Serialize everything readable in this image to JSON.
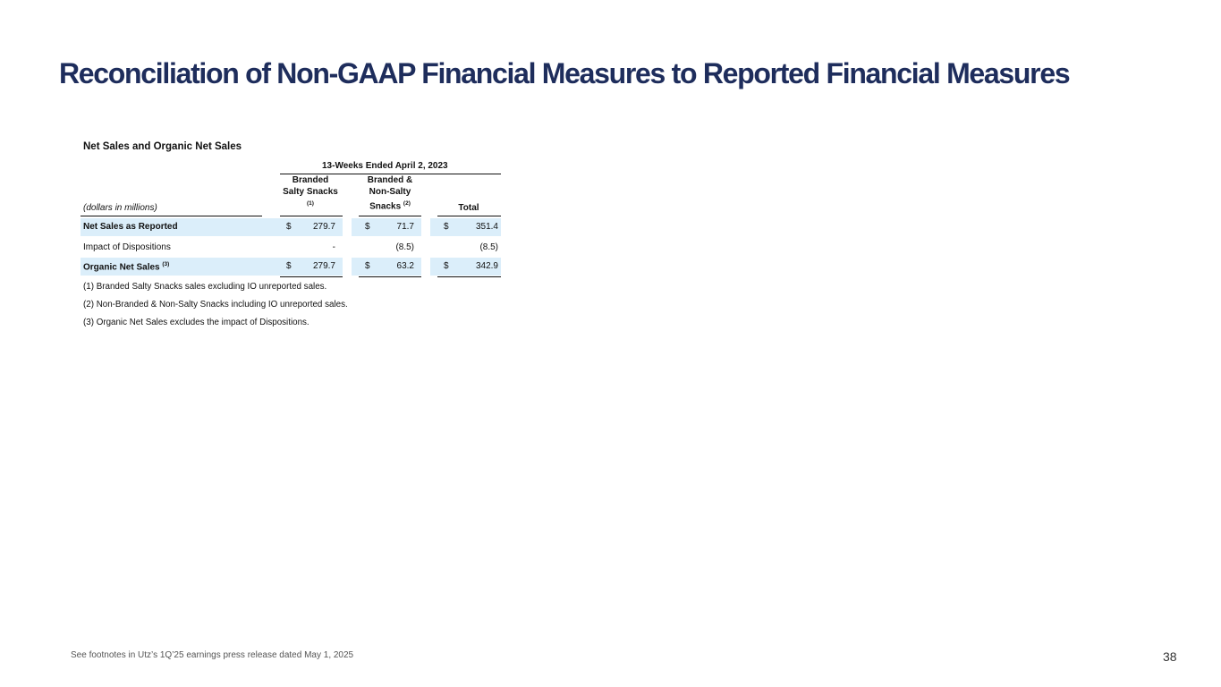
{
  "title": "Reconciliation of Non-GAAP Financial Measures to Reported Financial Measures",
  "table": {
    "section_title": "Net Sales and Organic Net Sales",
    "period_header": "13-Weeks Ended April 2, 2023",
    "units_label": "(dollars in millions)",
    "columns": [
      {
        "line1": "Branded",
        "line2": "Salty Snacks",
        "line3": "",
        "note": "(1)"
      },
      {
        "line1": "Branded &",
        "line2": "Non-Salty",
        "line3": "Snacks",
        "note": "(2)"
      },
      {
        "line1": "",
        "line2": "",
        "line3": "Total",
        "note": ""
      }
    ],
    "rows": [
      {
        "label": "Net Sales as Reported",
        "note": "",
        "cur": [
          "$",
          "$",
          "$"
        ],
        "values": [
          "279.7",
          "71.7",
          "351.4"
        ]
      },
      {
        "label": "Impact of Dispositions",
        "note": "",
        "cur": [
          "",
          "",
          ""
        ],
        "values": [
          "-",
          "(8.5)",
          "(8.5)"
        ]
      },
      {
        "label": "Organic Net Sales",
        "note": "(3)",
        "cur": [
          "$",
          "$",
          "$"
        ],
        "values": [
          "279.7",
          "63.2",
          "342.9"
        ]
      }
    ],
    "footnotes": [
      "(1) Branded Salty Snacks sales excluding IO unreported sales.",
      "(2) Non-Branded & Non-Salty Snacks including IO unreported sales.",
      "(3) Organic Net Sales excludes the impact of Dispositions."
    ]
  },
  "source_note": "See footnotes in Utz’s 1Q’25 earnings press release dated May 1, 2025",
  "page_number": "38"
}
